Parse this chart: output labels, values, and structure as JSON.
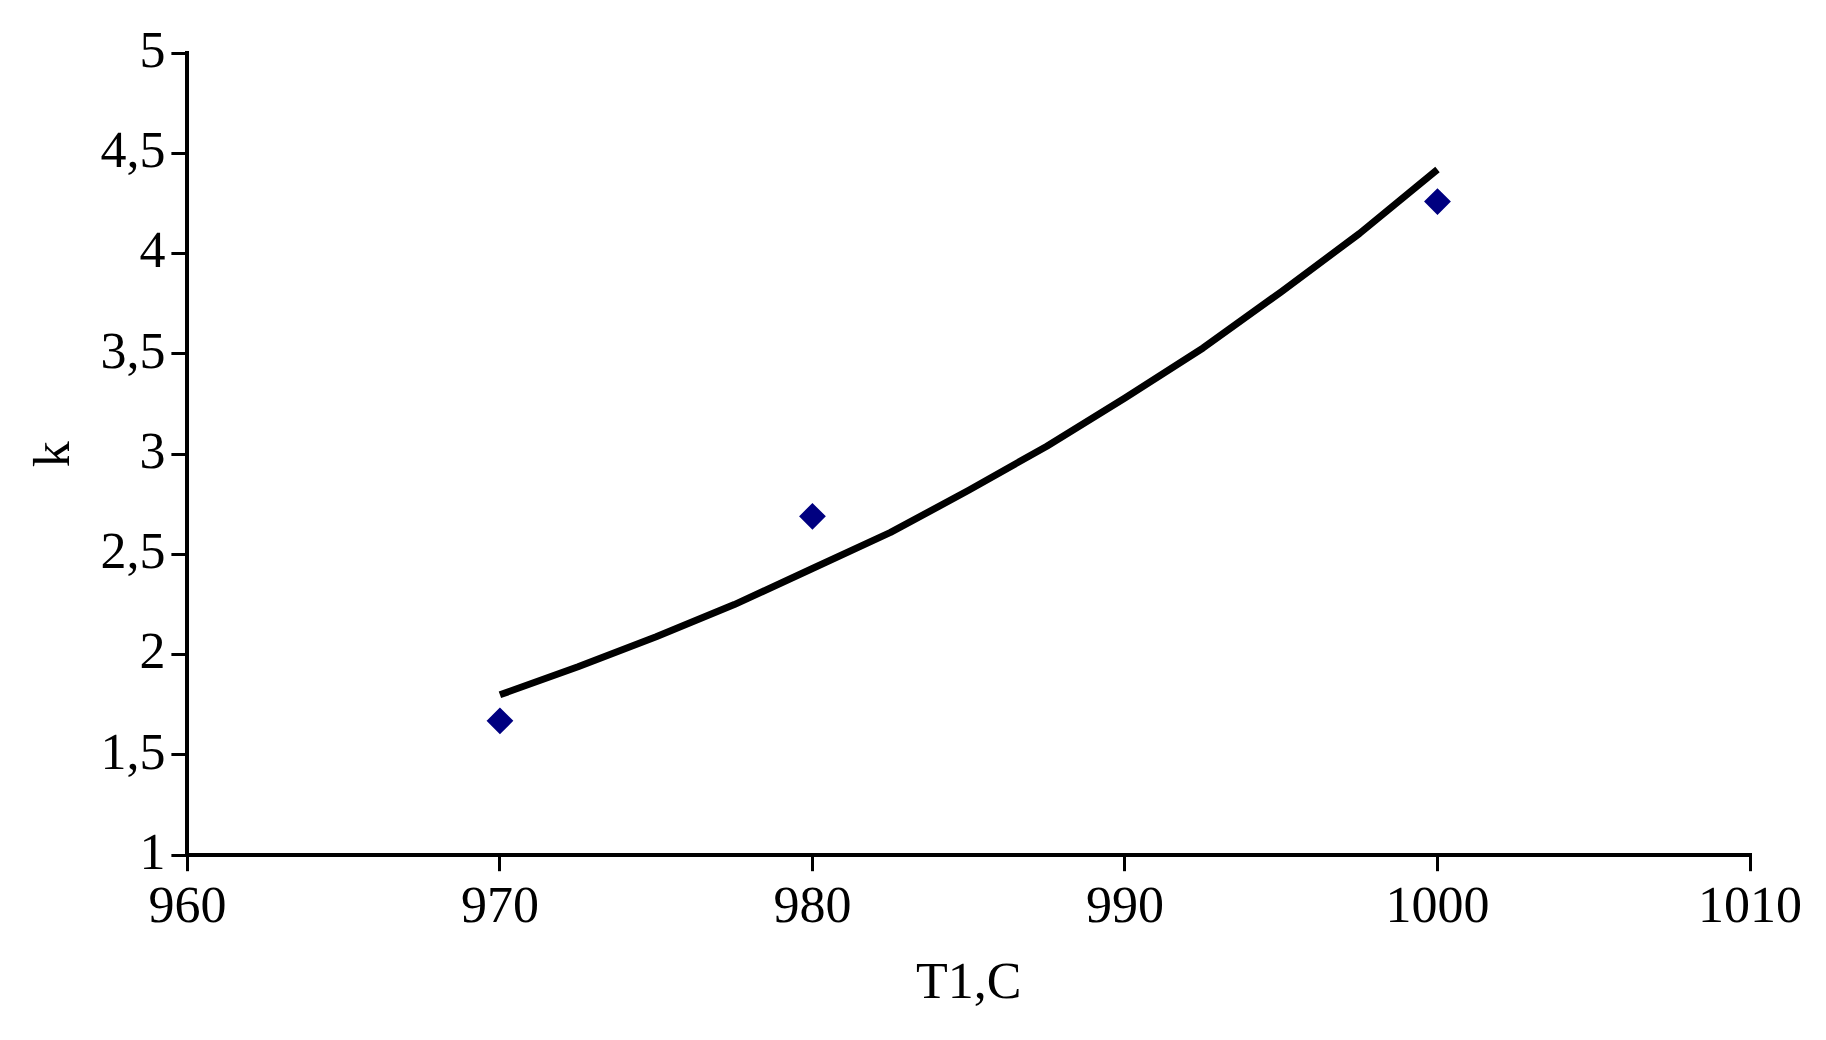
{
  "chart_data": {
    "type": "scatter",
    "xlabel": "T1,C",
    "ylabel": "k",
    "xlim": [
      960,
      1010
    ],
    "xticks": [
      960,
      970,
      980,
      990,
      1000,
      1010
    ],
    "ylim": [
      1,
      5
    ],
    "yticks": [
      1,
      {
        "value": 1.5,
        "label": "1,5"
      },
      2,
      {
        "value": 2.5,
        "label": "2,5"
      },
      3,
      {
        "value": 3.5,
        "label": "3,5"
      },
      4,
      {
        "value": 4.5,
        "label": "4,5"
      },
      5
    ],
    "grid": false,
    "legend": false,
    "marker": "diamond",
    "series": [
      {
        "type": "scatter",
        "color": "#000080",
        "x": [
          970,
          980,
          1000
        ],
        "values": [
          1.67,
          2.69,
          4.26
        ]
      },
      {
        "type": "line",
        "color": "#000000",
        "marker": "none",
        "line_style": "solid",
        "x": [
          970,
          972.5,
          975,
          977.5,
          980,
          982.5,
          985,
          987.5,
          990,
          992.5,
          995,
          997.5,
          1000
        ],
        "values": [
          1.8,
          1.94,
          2.09,
          2.25,
          2.43,
          2.61,
          2.82,
          3.04,
          3.28,
          3.53,
          3.81,
          4.1,
          4.42
        ]
      }
    ]
  }
}
